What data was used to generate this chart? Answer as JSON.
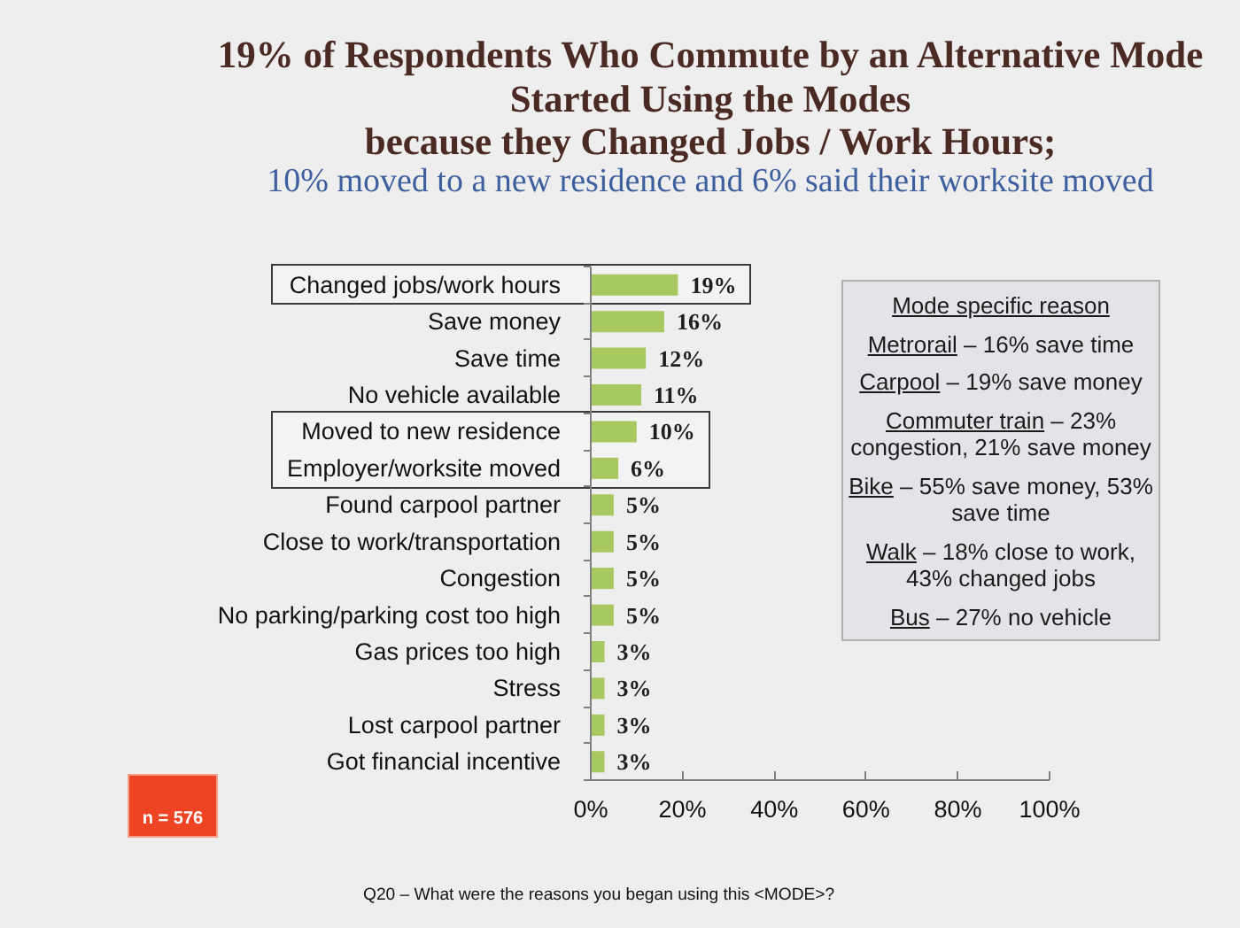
{
  "chart_data": {
    "type": "bar",
    "orientation": "horizontal",
    "title": "19% of Respondents Who Commute by an Alternative Mode\nStarted Using the Modes\nbecause they Changed Jobs / Work Hours;",
    "subtitle": "10% moved to a new residence and 6% said their worksite moved",
    "categories": [
      "Changed jobs/work hours",
      "Save money",
      "Save time",
      "No vehicle available",
      "Moved to new residence",
      "Employer/worksite moved",
      "Found carpool partner",
      "Close to work/transportation",
      "Congestion",
      "No parking/parking cost too high",
      "Gas prices too high",
      "Stress",
      "Lost carpool partner",
      "Got financial incentive"
    ],
    "values": [
      19,
      16,
      12,
      11,
      10,
      6,
      5,
      5,
      5,
      5,
      3,
      3,
      3,
      3
    ],
    "value_labels": [
      "19%",
      "16%",
      "12%",
      "11%",
      "10%",
      "6%",
      "5%",
      "5%",
      "5%",
      "5%",
      "3%",
      "3%",
      "3%",
      "3%"
    ],
    "color": "#a8c860",
    "xlim": [
      0,
      100
    ],
    "xticks": [
      {
        "value": 0,
        "label": "0%"
      },
      {
        "value": 20,
        "label": "20%"
      },
      {
        "value": 40,
        "label": "40%"
      },
      {
        "value": 60,
        "label": "60%"
      },
      {
        "value": 80,
        "label": "80%"
      },
      {
        "value": 100,
        "label": "100%"
      }
    ],
    "bands": [
      {
        "axis": "y",
        "from": "Changed jobs/work hours",
        "to": "Changed jobs/work hours",
        "color": "#3a3a3a"
      },
      {
        "axis": "y",
        "from": "Moved to new residence",
        "to": "Employer/worksite moved",
        "color": "#3a3a3a"
      }
    ],
    "annotations": [
      "Mode specific reason",
      "Metrorail – 16% save time",
      "Carpool – 19% save money",
      "Commuter train – 23% congestion, 21% save money",
      "Bike – 55% save money, 53% save time",
      "Walk – 18% close to work, 43% changed jobs",
      "Bus – 27% no vehicle",
      "n = 576",
      "Q20 – What were the reasons you began using this <MODE>?"
    ]
  }
}
